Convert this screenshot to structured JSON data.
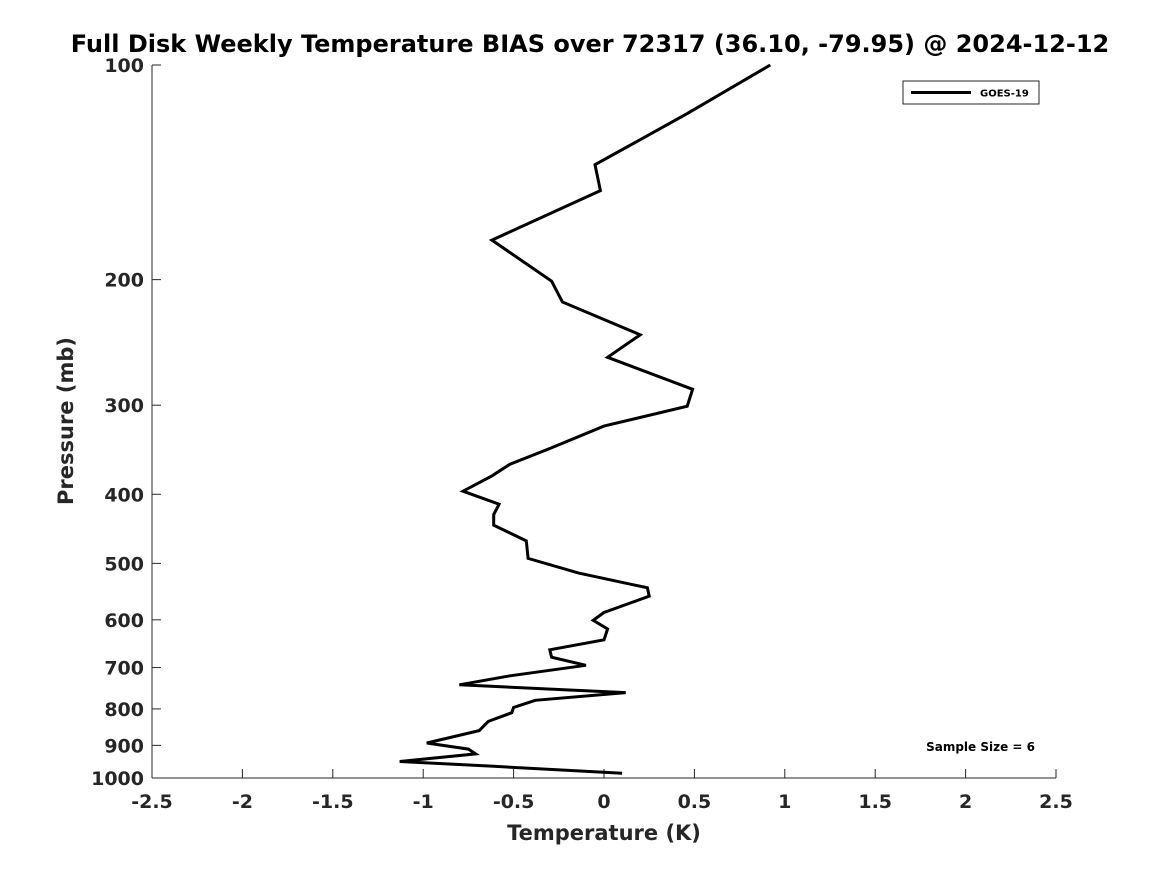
{
  "chart_data": {
    "type": "line",
    "title": "Full Disk Weekly Temperature BIAS over 72317 (36.10, -79.95) @ 2024-12-12",
    "xlabel": "Temperature (K)",
    "ylabel": "Pressure (mb)",
    "xlim": [
      -2.5,
      2.5
    ],
    "ylim": [
      1000,
      100
    ],
    "yscale": "log",
    "y_reversed": true,
    "x_ticks": [
      -2.5,
      -2,
      -1.5,
      -1,
      -0.5,
      0,
      0.5,
      1,
      1.5,
      2,
      2.5
    ],
    "x_tick_labels": [
      "-2.5",
      "-2",
      "-1.5",
      "-1",
      "-0.5",
      "0",
      "0.5",
      "1",
      "1.5",
      "2",
      "2.5"
    ],
    "y_ticks": [
      100,
      200,
      300,
      400,
      500,
      600,
      700,
      800,
      900,
      1000
    ],
    "y_tick_labels": [
      "100",
      "200",
      "300",
      "400",
      "500",
      "600",
      "700",
      "800",
      "900",
      "1000"
    ],
    "grid": false,
    "legend_position": "top-right",
    "annotation": "Sample Size = 6",
    "series": [
      {
        "name": "GOES-19",
        "color": "#000000",
        "points": [
          [
            0.92,
            100
          ],
          [
            0.46,
            117
          ],
          [
            -0.05,
            138
          ],
          [
            -0.02,
            150
          ],
          [
            -0.62,
            176
          ],
          [
            -0.29,
            201
          ],
          [
            -0.23,
            215
          ],
          [
            0.2,
            239
          ],
          [
            0.02,
            257
          ],
          [
            0.49,
            285
          ],
          [
            0.46,
            301
          ],
          [
            0.0,
            321
          ],
          [
            -0.3,
            345
          ],
          [
            -0.52,
            363
          ],
          [
            -0.62,
            377
          ],
          [
            -0.78,
            396
          ],
          [
            -0.58,
            413
          ],
          [
            -0.61,
            427
          ],
          [
            -0.61,
            442
          ],
          [
            -0.43,
            465
          ],
          [
            -0.42,
            492
          ],
          [
            -0.14,
            516
          ],
          [
            0.24,
            541
          ],
          [
            0.25,
            556
          ],
          [
            0.0,
            586
          ],
          [
            -0.06,
            601
          ],
          [
            0.02,
            618
          ],
          [
            0.0,
            640
          ],
          [
            -0.3,
            661
          ],
          [
            -0.29,
            677
          ],
          [
            -0.1,
            695
          ],
          [
            -0.52,
            719
          ],
          [
            -0.8,
            740
          ],
          [
            0.12,
            759
          ],
          [
            -0.38,
            778
          ],
          [
            -0.5,
            796
          ],
          [
            -0.51,
            810
          ],
          [
            -0.64,
            833
          ],
          [
            -0.69,
            858
          ],
          [
            -0.98,
            893
          ],
          [
            -0.75,
            911
          ],
          [
            -0.71,
            925
          ],
          [
            -1.13,
            948
          ],
          [
            -0.61,
            963
          ],
          [
            0.1,
            985
          ]
        ]
      }
    ]
  }
}
